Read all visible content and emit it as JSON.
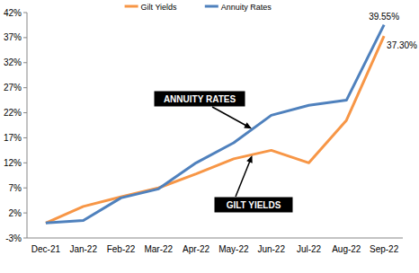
{
  "chart_data": {
    "type": "line",
    "categories": [
      "Dec-21",
      "Jan-22",
      "Feb-22",
      "Mar-22",
      "Apr-22",
      "May-22",
      "Jun-22",
      "Jul-22",
      "Aug-22",
      "Sep-22"
    ],
    "series": [
      {
        "name": "Gilt Yields",
        "color": "#f79646",
        "values": [
          0,
          3.3,
          5.2,
          7,
          9.8,
          12.8,
          14.5,
          12,
          20.5,
          37.3
        ],
        "value_labels": [
          null,
          null,
          null,
          null,
          null,
          null,
          null,
          null,
          null,
          "37.30%"
        ]
      },
      {
        "name": "Annuity Rates",
        "color": "#4f81bd",
        "values": [
          0,
          0.5,
          5,
          6.8,
          12,
          16,
          21.5,
          23.5,
          24.5,
          39.55
        ],
        "value_labels": [
          null,
          null,
          null,
          null,
          null,
          null,
          null,
          null,
          null,
          "39.55%"
        ]
      }
    ],
    "ylim": [
      -3,
      42
    ],
    "yticks": [
      {
        "value": -3,
        "label": "-3%"
      },
      {
        "value": 2,
        "label": "2%"
      },
      {
        "value": 7,
        "label": "7%"
      },
      {
        "value": 12,
        "label": "12%"
      },
      {
        "value": 17,
        "label": "17%"
      },
      {
        "value": 22,
        "label": "22%"
      },
      {
        "value": 27,
        "label": "27%"
      },
      {
        "value": 32,
        "label": "32%"
      },
      {
        "value": 37,
        "label": "37%"
      },
      {
        "value": 42,
        "label": "42%"
      }
    ],
    "annotations": [
      {
        "text": "ANNUITY RATES"
      },
      {
        "text": "GILT YIELDS"
      }
    ],
    "legend": "top",
    "grid": false
  }
}
